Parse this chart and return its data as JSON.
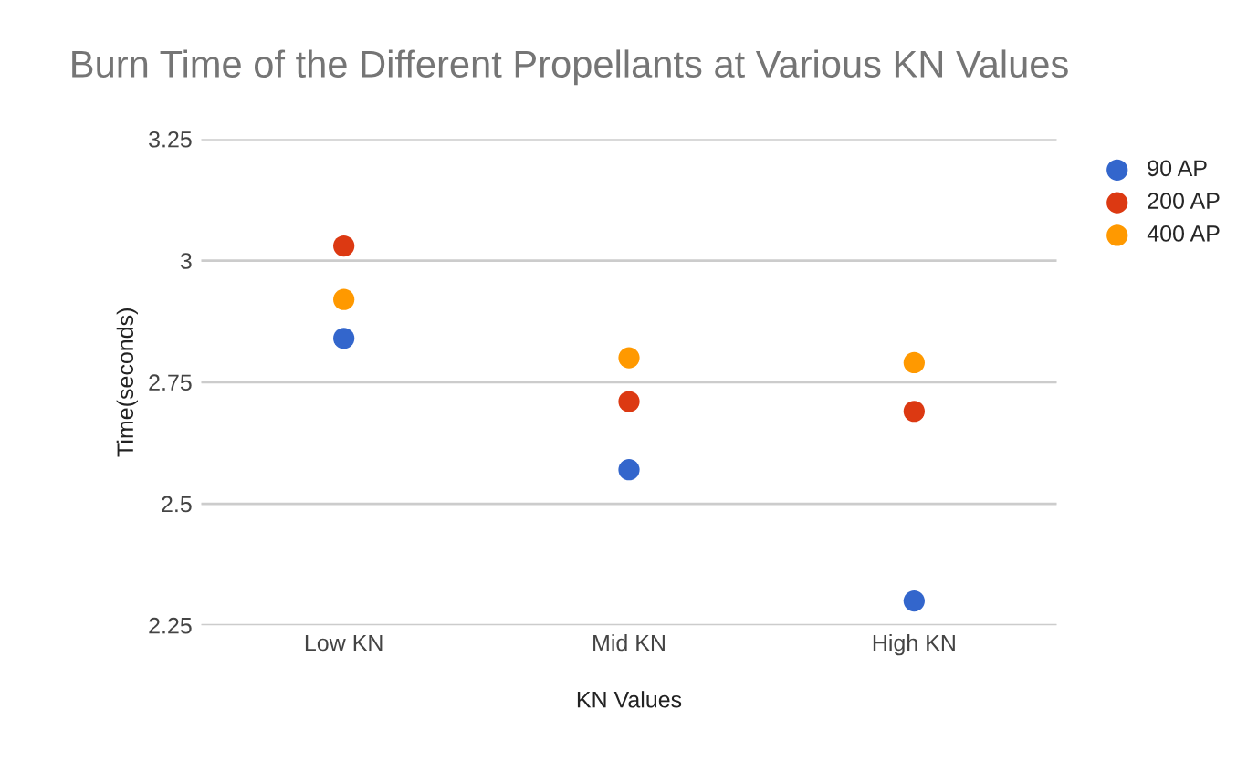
{
  "chart_data": {
    "type": "scatter",
    "title": "Burn Time of the Different Propellants at Various KN Values",
    "xlabel": "KN Values",
    "ylabel": "Time(seconds)",
    "categories": [
      "Low KN",
      "Mid KN",
      "High KN"
    ],
    "series": [
      {
        "name": "90 AP",
        "color": "#3366cc",
        "values": [
          2.84,
          2.57,
          2.3
        ]
      },
      {
        "name": "200 AP",
        "color": "#dc3912",
        "values": [
          3.03,
          2.71,
          2.69
        ]
      },
      {
        "name": "400 AP",
        "color": "#ff9900",
        "values": [
          2.92,
          2.8,
          2.79
        ]
      }
    ],
    "ylim": [
      2.25,
      3.25
    ],
    "yticks": [
      2.25,
      2.5,
      2.75,
      3,
      3.25
    ],
    "grid": "y",
    "legend": "top right",
    "marker": "circle"
  }
}
